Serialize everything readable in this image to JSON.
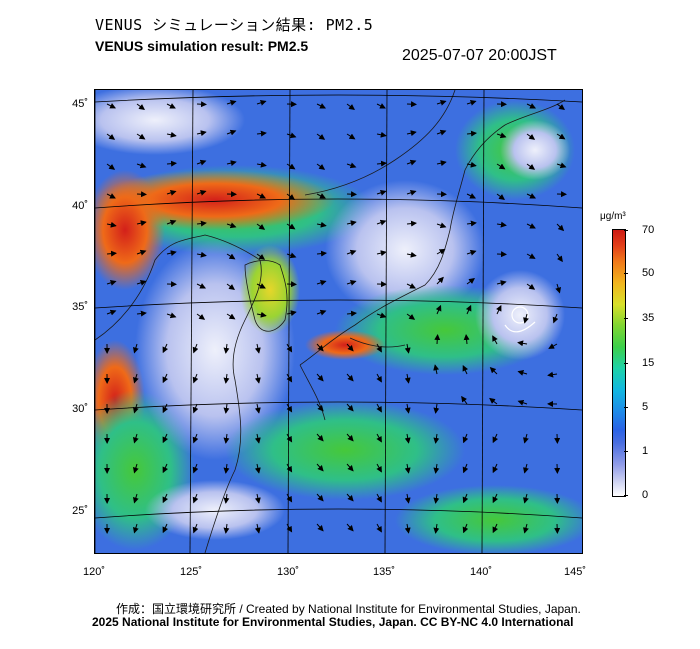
{
  "header": {
    "title_jp": "VENUS シミュレーション結果: PM2.5",
    "title_en": "VENUS simulation result: PM2.5",
    "timestamp": "2025-07-07 20:00JST"
  },
  "map": {
    "lon_labels": [
      "120˚",
      "125˚",
      "130˚",
      "135˚",
      "140˚",
      "145˚"
    ],
    "lat_labels": [
      "45˚",
      "40˚",
      "35˚",
      "30˚",
      "25˚"
    ],
    "colors": {
      "sea_low": "#5a7de6",
      "land_high": "#e0381a",
      "coast": "#1a1a1a"
    }
  },
  "colorbar": {
    "unit": "μg/m³",
    "ticks": [
      "70",
      "50",
      "35",
      "15",
      "5",
      "1",
      "0"
    ],
    "colors": [
      "#ffffff",
      "#8f9be8",
      "#2a63e6",
      "#12b8e0",
      "#3ccf4a",
      "#d8e02a",
      "#f07a1a",
      "#cc1a14"
    ]
  },
  "footer": {
    "credit_jp_en": "作成：国立環境研究所 / Created by National Institute for Environmental Studies, Japan.",
    "copyright": "2025 National Institute for Environmental Studies, Japan. CC BY-NC 4.0 International"
  }
}
